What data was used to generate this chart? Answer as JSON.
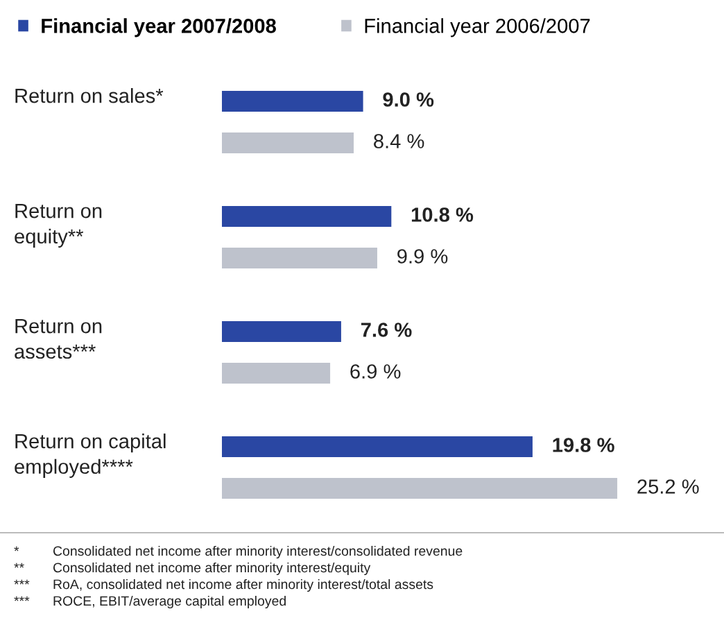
{
  "chart_data": {
    "type": "bar",
    "orientation": "horizontal",
    "categories": [
      "Return on sales*",
      "Return on\nequity**",
      "Return on\nassets***",
      "Return on capital\nemployed****"
    ],
    "series": [
      {
        "name": "Financial year 2007/2008",
        "color": "#2a47a3",
        "values": [
          9.0,
          10.8,
          7.6,
          19.8
        ],
        "value_labels": [
          "9.0 %",
          "10.8 %",
          "7.6 %",
          "19.8 %"
        ]
      },
      {
        "name": "Financial year 2006/2007",
        "color": "#bec2cc",
        "values": [
          8.4,
          9.9,
          6.9,
          25.2
        ],
        "value_labels": [
          "8.4 %",
          "9.9 %",
          "6.9 %",
          "25.2 %"
        ]
      }
    ],
    "legend": "top",
    "tick_labels": false,
    "annotations": [
      "* Consolidated net income after minority interest/consolidated revenue",
      "** Consolidated net income after minority interest/equity",
      "*** RoA, consolidated net income after minority interest/total assets",
      "*** ROCE, EBIT/average capital employed"
    ]
  }
}
